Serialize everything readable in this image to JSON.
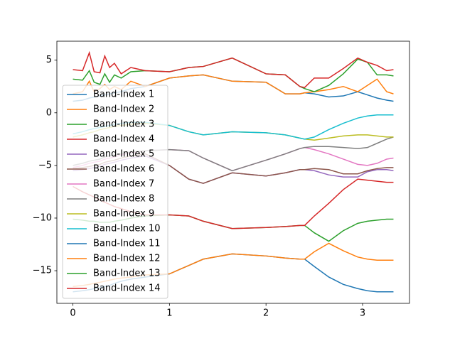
{
  "chart_data": {
    "type": "line",
    "legend": "lower left",
    "xlim": [
      -0.166,
      3.486
    ],
    "ylim": [
      -18.1,
      6.8
    ],
    "xticks": [
      0,
      1,
      2,
      3
    ],
    "yticks": [
      5,
      0,
      {
        "value": -5,
        "label": "−5"
      },
      {
        "value": -10,
        "label": "−10"
      },
      {
        "value": -15,
        "label": "−15"
      }
    ],
    "x": [
      0,
      0.1,
      0.17,
      0.22,
      0.28,
      0.33,
      0.38,
      0.43,
      0.5,
      0.6,
      0.75,
      1.0,
      1.2,
      1.35,
      1.65,
      2.0,
      2.2,
      2.35,
      2.4,
      2.5,
      2.65,
      2.8,
      2.95,
      3.05,
      3.15,
      3.25,
      3.32
    ],
    "series": [
      {
        "name": "Band-Index 1",
        "color": "#1f77b4",
        "values": [
          -17.0,
          -16.9,
          -16.8,
          -16.7,
          -16.6,
          -16.5,
          -16.4,
          -16.2,
          -16.0,
          -15.8,
          -15.6,
          -15.3,
          -14.5,
          -13.9,
          -13.4,
          -13.6,
          -13.8,
          -13.9,
          -13.9,
          -14.6,
          -15.6,
          -16.3,
          -16.7,
          -16.9,
          -17.0,
          -17.0,
          -17.0
        ]
      },
      {
        "name": "Band-Index 2",
        "color": "#ff7f0e",
        "values": [
          -16.5,
          -16.4,
          -16.3,
          -16.2,
          -16.1,
          -16.0,
          -15.9,
          -15.8,
          -15.7,
          -15.6,
          -15.4,
          -15.3,
          -14.5,
          -13.9,
          -13.4,
          -13.6,
          -13.8,
          -13.9,
          -13.9,
          -13.2,
          -12.4,
          -13.1,
          -13.7,
          -13.9,
          -14.0,
          -14.0,
          -14.0
        ]
      },
      {
        "name": "Band-Index 3",
        "color": "#2ca02c",
        "values": [
          -10.1,
          -10.2,
          -10.3,
          -10.3,
          -10.4,
          -10.4,
          -10.4,
          -10.3,
          -10.2,
          -10.0,
          -9.8,
          -9.7,
          -9.8,
          -10.3,
          -11.0,
          -10.9,
          -10.8,
          -10.7,
          -10.7,
          -11.4,
          -12.2,
          -11.2,
          -10.5,
          -10.3,
          -10.2,
          -10.1,
          -10.1
        ]
      },
      {
        "name": "Band-Index 4",
        "color": "#d62728",
        "values": [
          -7.0,
          -7.5,
          -7.8,
          -8.0,
          -8.3,
          -8.5,
          -8.7,
          -8.9,
          -9.1,
          -9.4,
          -9.7,
          -9.7,
          -9.8,
          -10.3,
          -11.0,
          -10.9,
          -10.8,
          -10.7,
          -10.7,
          -9.8,
          -8.6,
          -7.3,
          -6.3,
          -6.4,
          -6.5,
          -6.6,
          -6.6
        ]
      },
      {
        "name": "Band-Index 5",
        "color": "#9467bd",
        "values": [
          -5.5,
          -5.4,
          -5.3,
          -5.2,
          -5.1,
          -4.9,
          -4.8,
          -4.7,
          -4.5,
          -4.3,
          -4.1,
          -5.0,
          -6.3,
          -6.7,
          -5.7,
          -6.0,
          -5.7,
          -5.4,
          -5.4,
          -5.5,
          -5.9,
          -6.1,
          -6.1,
          -5.6,
          -5.4,
          -5.4,
          -5.5
        ]
      },
      {
        "name": "Band-Index 6",
        "color": "#8c564b",
        "values": [
          -5.3,
          -5.2,
          -5.1,
          -5.0,
          -4.9,
          -4.7,
          -4.6,
          -4.5,
          -4.3,
          -4.1,
          -3.9,
          -5.0,
          -6.3,
          -6.7,
          -5.7,
          -6.0,
          -5.7,
          -5.4,
          -5.4,
          -5.3,
          -5.4,
          -5.8,
          -5.8,
          -5.5,
          -5.3,
          -5.2,
          -5.2
        ]
      },
      {
        "name": "Band-Index 7",
        "color": "#e377c2",
        "values": [
          -5.2,
          -5.0,
          -4.8,
          -4.7,
          -4.6,
          -4.4,
          -4.3,
          -4.2,
          -4.0,
          -3.8,
          -3.6,
          -3.5,
          -3.6,
          -4.3,
          -5.5,
          -4.5,
          -3.9,
          -3.4,
          -3.3,
          -3.5,
          -3.9,
          -4.4,
          -4.9,
          -5.0,
          -4.8,
          -4.4,
          -4.3
        ]
      },
      {
        "name": "Band-Index 8",
        "color": "#7f7f7f",
        "values": [
          -5.0,
          -4.8,
          -4.6,
          -4.5,
          -4.4,
          -4.2,
          -4.1,
          -4.0,
          -3.9,
          -3.7,
          -3.6,
          -3.5,
          -3.6,
          -4.3,
          -5.5,
          -4.5,
          -3.9,
          -3.4,
          -3.3,
          -3.2,
          -3.2,
          -3.3,
          -3.4,
          -3.3,
          -2.9,
          -2.5,
          -2.3
        ]
      },
      {
        "name": "Band-Index 9",
        "color": "#bcbd22",
        "values": [
          -2.3,
          -2.1,
          -1.9,
          -1.8,
          -1.6,
          -1.5,
          -1.4,
          -1.3,
          -1.2,
          -1.1,
          -1.0,
          -1.2,
          -1.8,
          -2.1,
          -1.8,
          -1.9,
          -2.1,
          -2.4,
          -2.5,
          -2.6,
          -2.4,
          -2.2,
          -2.1,
          -2.1,
          -2.2,
          -2.3,
          -2.3
        ]
      },
      {
        "name": "Band-Index 10",
        "color": "#17becf",
        "values": [
          -2.0,
          -1.8,
          -1.6,
          -1.5,
          -1.4,
          -1.3,
          -1.2,
          -1.1,
          -1.0,
          -0.9,
          -0.9,
          -1.2,
          -1.8,
          -2.1,
          -1.8,
          -1.9,
          -2.1,
          -2.4,
          -2.5,
          -2.3,
          -1.6,
          -1.0,
          -0.5,
          -0.3,
          -0.2,
          -0.2,
          -0.2
        ]
      },
      {
        "name": "Band-Index 11",
        "color": "#1f77b4",
        "values": [
          1.1,
          1.2,
          1.4,
          1.5,
          1.6,
          1.7,
          1.8,
          1.9,
          2.0,
          2.3,
          2.5,
          3.3,
          3.5,
          3.6,
          3.0,
          2.9,
          1.8,
          1.8,
          1.9,
          1.8,
          1.5,
          1.6,
          2.0,
          1.7,
          1.4,
          1.2,
          1.1
        ]
      },
      {
        "name": "Band-Index 12",
        "color": "#ff7f0e",
        "values": [
          1.8,
          2.0,
          3.0,
          2.0,
          2.3,
          2.7,
          2.2,
          2.5,
          2.2,
          3.0,
          2.5,
          3.3,
          3.5,
          3.6,
          3.0,
          2.9,
          1.8,
          1.8,
          1.9,
          2.0,
          2.2,
          2.5,
          2.0,
          2.6,
          3.2,
          2.0,
          1.8
        ]
      },
      {
        "name": "Band-Index 13",
        "color": "#2ca02c",
        "values": [
          3.2,
          3.1,
          4.0,
          2.9,
          2.7,
          3.7,
          2.9,
          3.6,
          3.3,
          3.9,
          4.0,
          3.9,
          4.3,
          4.4,
          5.2,
          3.7,
          3.6,
          2.5,
          2.3,
          2.0,
          2.6,
          3.7,
          5.1,
          4.8,
          3.6,
          3.6,
          3.5
        ]
      },
      {
        "name": "Band-Index 14",
        "color": "#d62728",
        "values": [
          4.1,
          4.0,
          5.7,
          3.9,
          3.8,
          5.4,
          4.3,
          4.7,
          3.7,
          4.3,
          4.0,
          3.9,
          4.3,
          4.4,
          5.2,
          3.7,
          3.6,
          2.5,
          2.4,
          3.3,
          3.3,
          4.2,
          5.2,
          4.8,
          4.5,
          4.0,
          4.1
        ]
      }
    ]
  }
}
